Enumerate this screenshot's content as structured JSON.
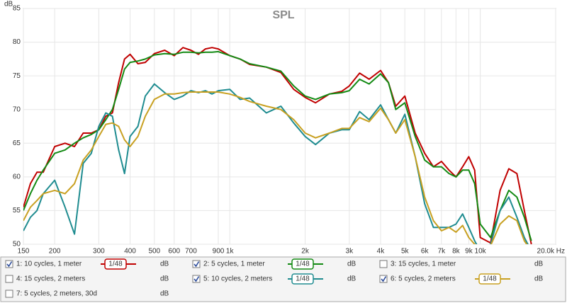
{
  "chart_data": {
    "type": "line",
    "title": "SPL",
    "y_label": "dB",
    "x_scale": "log",
    "grid": true,
    "xlim": [
      150,
      20000
    ],
    "ylim": [
      50,
      85
    ],
    "yticks": [
      50,
      55,
      60,
      65,
      70,
      75,
      80,
      85
    ],
    "xticks": [
      150,
      200,
      300,
      400,
      500,
      600,
      700,
      900,
      {
        "value": 1000,
        "label": "1k"
      },
      {
        "value": 2000,
        "label": "2k"
      },
      {
        "value": 3000,
        "label": "3k"
      },
      {
        "value": 4000,
        "label": "4k"
      },
      {
        "value": 5000,
        "label": "5k"
      },
      {
        "value": 6000,
        "label": "6k"
      },
      {
        "value": 7000,
        "label": "7k"
      },
      {
        "value": 8000,
        "label": "8k"
      },
      {
        "value": 9000,
        "label": "9k"
      },
      {
        "value": 10000,
        "label": "10k"
      },
      {
        "value": 20000,
        "label": "20.0k Hz"
      }
    ],
    "x": [
      150,
      160,
      170,
      180,
      200,
      220,
      240,
      260,
      280,
      300,
      320,
      340,
      360,
      380,
      400,
      430,
      460,
      500,
      550,
      600,
      650,
      700,
      750,
      800,
      850,
      900,
      1000,
      1100,
      1200,
      1400,
      1600,
      1800,
      2000,
      2200,
      2500,
      2800,
      3000,
      3300,
      3600,
      4000,
      4300,
      4600,
      5000,
      5500,
      6000,
      6500,
      7000,
      7500,
      8000,
      8500,
      9000,
      9500,
      10000,
      11000,
      12000,
      13000,
      14000,
      15000,
      16000
    ],
    "series": [
      {
        "name": "1: 10 cycles, 1 meter",
        "checked": true,
        "smoothing": "1/48",
        "unit": "dB",
        "color": "#c00000",
        "values": [
          55.5,
          59,
          60.7,
          60.7,
          64.5,
          65,
          64.5,
          66.5,
          66.5,
          67,
          69,
          69.5,
          74,
          77.5,
          78.2,
          76.8,
          77,
          78.3,
          78.8,
          78,
          79.2,
          78.8,
          78.2,
          79,
          79.2,
          79,
          78,
          77.5,
          76.7,
          76.3,
          75.5,
          73,
          71.8,
          71,
          72.3,
          72.7,
          73.5,
          75.4,
          74.5,
          75.8,
          74,
          70.5,
          72,
          66.5,
          63.5,
          61.5,
          62.3,
          61,
          60,
          61.5,
          63,
          61,
          51,
          50.2,
          58,
          61.2,
          60.5,
          55,
          50
        ]
      },
      {
        "name": "2: 5 cycles, 1 meter",
        "checked": true,
        "smoothing": "1/48",
        "unit": "dB",
        "color": "#138a13",
        "values": [
          55,
          57.5,
          59.5,
          61,
          63.5,
          64,
          65,
          65.8,
          66.3,
          67,
          68.5,
          70,
          73,
          76,
          77,
          77.2,
          77.5,
          78.1,
          78.3,
          78.2,
          78.5,
          78.5,
          78.4,
          78.5,
          78.5,
          78.6,
          78,
          77.5,
          76.8,
          76.3,
          75.7,
          73.5,
          72,
          71.5,
          72.3,
          72.5,
          72.8,
          74.5,
          73.8,
          75.3,
          74,
          70,
          71,
          66,
          62.5,
          61.5,
          61.5,
          60.5,
          60,
          61,
          61,
          59,
          53,
          51,
          55,
          58,
          57,
          54,
          50.5
        ]
      },
      {
        "name": "3: 15 cycles, 1 meter",
        "checked": false,
        "unit": "dB",
        "color": "#4848c8"
      },
      {
        "name": "4: 15 cycles, 2 meters",
        "checked": false,
        "unit": "dB",
        "color": "#c030c0"
      },
      {
        "name": "5: 10 cycles, 2 meters",
        "checked": true,
        "smoothing": "1/48",
        "unit": "dB",
        "color": "#1f8c90",
        "values": [
          52,
          54,
          55,
          57.5,
          59.5,
          55.5,
          51.5,
          62,
          63.5,
          67.5,
          69.5,
          69,
          64,
          60.5,
          66,
          67.5,
          72,
          73.8,
          72.5,
          71.5,
          72,
          72.8,
          72.5,
          72.8,
          72.3,
          72.8,
          73,
          71.5,
          71.7,
          69.5,
          70.5,
          68,
          66,
          64.8,
          66.5,
          67,
          67,
          69.7,
          68.5,
          70.7,
          68.5,
          66.5,
          69.3,
          63,
          56,
          52.5,
          52.5,
          52.5,
          53,
          54.5,
          52.5,
          50.5,
          49,
          50,
          55,
          57,
          54,
          51,
          49
        ]
      },
      {
        "name": "6: 5 cycles, 2 meters",
        "checked": true,
        "smoothing": "1/48",
        "unit": "dB",
        "color": "#c8a020",
        "values": [
          53.5,
          55.5,
          56.5,
          57.5,
          58,
          57.5,
          59,
          62.5,
          64,
          66,
          67.8,
          68,
          67.5,
          65.5,
          64.5,
          66,
          69,
          71.5,
          72.3,
          72.3,
          72.5,
          72.6,
          72.6,
          72.6,
          72.6,
          72.6,
          72.3,
          71.8,
          71.2,
          70.5,
          70,
          68.5,
          66.5,
          65.8,
          66.5,
          67.2,
          67.2,
          68.8,
          68.2,
          70.2,
          68.5,
          66.5,
          68.5,
          63,
          57,
          53.5,
          52,
          52.5,
          51.8,
          52.8,
          51,
          50,
          49.5,
          49.8,
          53,
          54.2,
          53.5,
          50.5,
          49
        ]
      },
      {
        "name": "7: 5 cycles, 2 meters, 30d",
        "checked": false,
        "unit": "dB",
        "color": "#20b060"
      }
    ]
  }
}
